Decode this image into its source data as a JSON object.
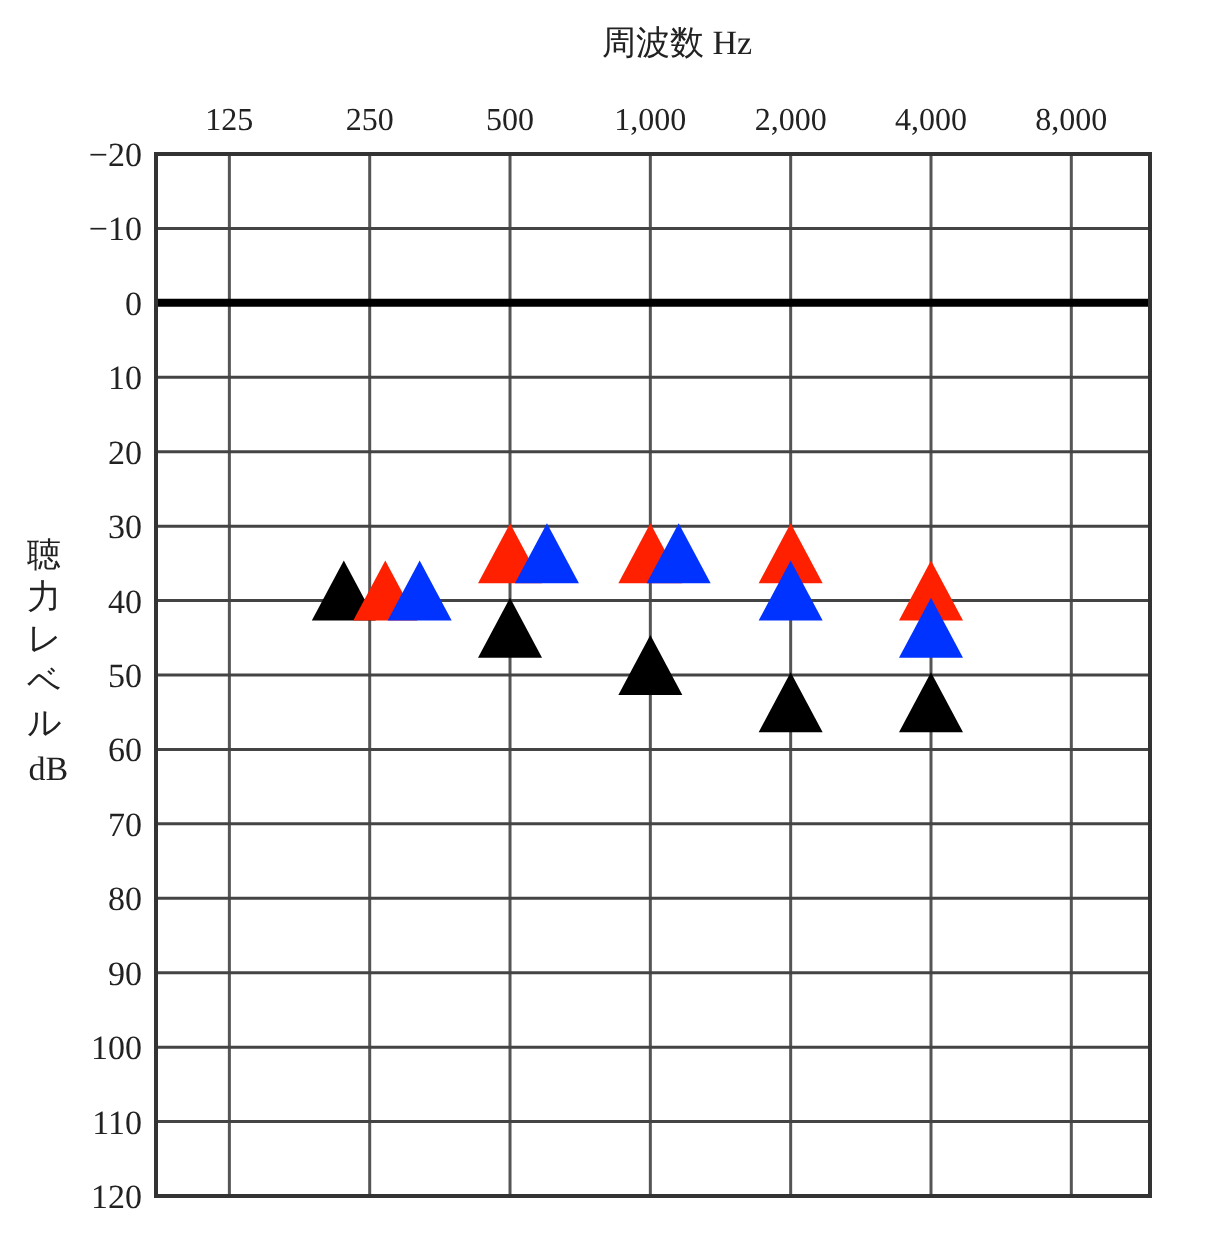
{
  "chart_data": {
    "type": "scatter",
    "xlabel": "周波数 Hz",
    "ylabel": "聴力レベル dB",
    "log": "x",
    "xlim": [
      87,
      11800
    ],
    "xticks": [
      {
        "value": 125,
        "label": "125"
      },
      {
        "value": 250,
        "label": "250"
      },
      {
        "value": 500,
        "label": "500"
      },
      {
        "value": 1000,
        "label": "1,000"
      },
      {
        "value": 2000,
        "label": "2,000"
      },
      {
        "value": 4000,
        "label": "4,000"
      },
      {
        "value": 8000,
        "label": "8,000"
      }
    ],
    "ylim": [
      120,
      -20
    ],
    "yticks": [
      {
        "value": -20,
        "label": "−20"
      },
      {
        "value": -10,
        "label": "−10"
      },
      0,
      10,
      20,
      30,
      40,
      50,
      60,
      70,
      80,
      90,
      100,
      110,
      120
    ],
    "grid": true,
    "marker": "triangle",
    "ref_lines": [
      {
        "axis": "y",
        "value": 0,
        "color": "#000000"
      }
    ],
    "series": [
      {
        "color": "#000000",
        "x": [
          220,
          500,
          1000,
          2000,
          4000
        ],
        "values": [
          40,
          45,
          50,
          55,
          55
        ]
      },
      {
        "color": "#ff2000",
        "x": [
          270,
          500,
          1000,
          2000,
          4000
        ],
        "values": [
          40,
          35,
          35,
          35,
          40
        ]
      },
      {
        "color": "#0033ff",
        "x": [
          320,
          600,
          1150,
          2000,
          4000
        ],
        "values": [
          40,
          35,
          35,
          40,
          45
        ]
      }
    ]
  }
}
